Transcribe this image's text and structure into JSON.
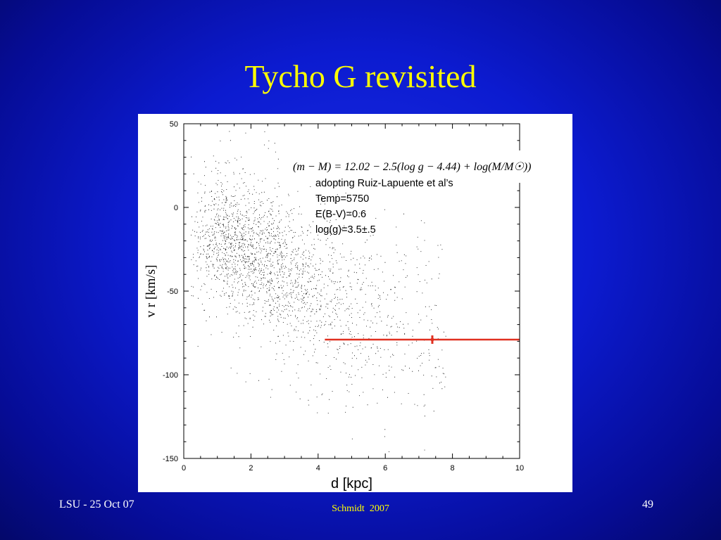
{
  "slide": {
    "title": "Tycho G revisited",
    "footer_left": "LSU - 25 Oct 07",
    "footer_center": "Schmidt  2007",
    "page_number": "49",
    "background_color": "#0c1bd0",
    "title_color": "#ffff00"
  },
  "chart_data": {
    "type": "scatter",
    "xlabel": "d [kpc]",
    "ylabel": "v r [km/s]",
    "xlim": [
      0,
      10
    ],
    "ylim": [
      -150,
      50
    ],
    "x_ticks": [
      "0",
      "2",
      "4",
      "6",
      "8",
      "10"
    ],
    "y_ticks": [
      "50",
      "0",
      "-50",
      "-100",
      "-150"
    ],
    "grid": false,
    "point_color": "#000000",
    "point_distribution": {
      "description_of_cloud": "dense cloud of several thousand stars; velocity declines with distance",
      "x_range": [
        0.2,
        7.8
      ],
      "y_range": [
        -150,
        48
      ],
      "trend_points": [
        {
          "x": 1.0,
          "y": -15
        },
        {
          "x": 2.0,
          "y": -28
        },
        {
          "x": 3.0,
          "y": -38
        },
        {
          "x": 4.0,
          "y": -50
        },
        {
          "x": 5.0,
          "y": -60
        },
        {
          "x": 6.0,
          "y": -68
        },
        {
          "x": 7.0,
          "y": -75
        }
      ]
    },
    "reference_line": {
      "color": "#e03020",
      "x_start": 4.2,
      "x_end": 10,
      "y": -79,
      "marker_x": 7.4
    },
    "annotations": {
      "formula": "(m − M) = 12.02 − 2.5(log g − 4.44) + log(M/M☉))",
      "lines": [
        "adopting Ruiz-Lapuente et al’s",
        "Temp=5750",
        "E(B-V)=0.6",
        "log(g)=3.5±.5"
      ]
    }
  }
}
